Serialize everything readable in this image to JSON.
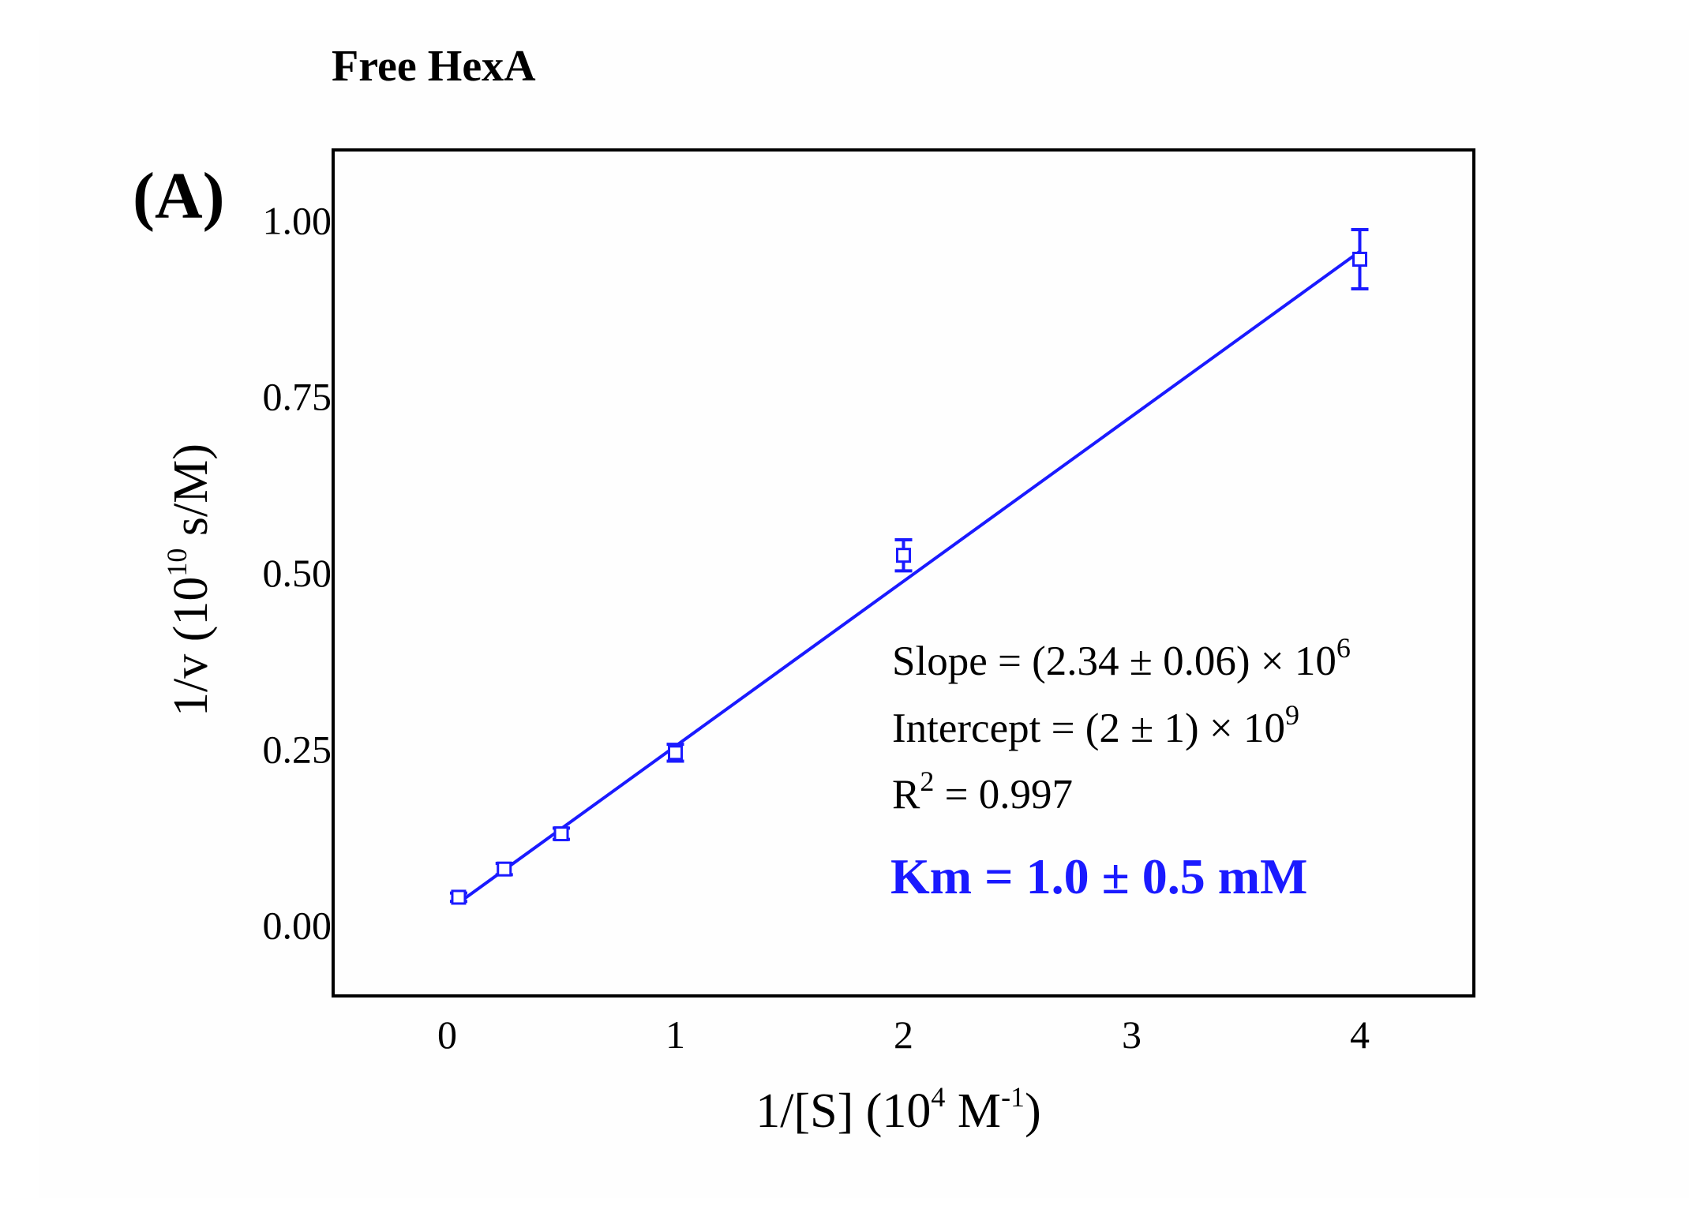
{
  "chart_data": {
    "type": "scatter",
    "title": "Free HexA",
    "panel_label": "(A)",
    "xlabel": {
      "main": "1/[S] (10",
      "exp1": "4",
      "mid": " M",
      "exp2": "-1",
      "end": ")"
    },
    "ylabel": {
      "main": "1/v (10",
      "exp": "10",
      "end": " s/M)"
    },
    "xlim": [
      -0.5,
      4.5
    ],
    "ylim": [
      -0.1,
      1.1
    ],
    "xticks": [
      0,
      1,
      2,
      3,
      4
    ],
    "xtick_labels": [
      "0",
      "1",
      "2",
      "3",
      "4"
    ],
    "yticks": [
      0.0,
      0.25,
      0.5,
      0.75,
      1.0
    ],
    "ytick_labels": [
      "0.00",
      "0.25",
      "0.50",
      "0.75",
      "1.00"
    ],
    "grid": false,
    "series": [
      {
        "marker": "open-square",
        "color": "#1a1aff",
        "x": [
          0.05,
          0.25,
          0.5,
          1.0,
          2.0,
          4.0
        ],
        "y": [
          0.04,
          0.08,
          0.13,
          0.245,
          0.525,
          0.945
        ],
        "err": [
          0.006,
          0.008,
          0.008,
          0.012,
          0.022,
          0.042
        ]
      }
    ],
    "fit_line": {
      "color": "#1a1aff",
      "x": [
        0.05,
        4.0
      ],
      "y": [
        0.032,
        0.956
      ]
    },
    "annotations": {
      "slope": {
        "main": "Slope = (2.34 ± 0.06) × 10",
        "exp": "6"
      },
      "intercept": {
        "main": "Intercept = (2 ± 1) × 10",
        "exp": "9"
      },
      "r2": {
        "pre": "R",
        "exp": "2",
        "post": " = 0.997"
      },
      "km": "Km = 1.0 ± 0.5 mM",
      "km_color": "#1a1aff"
    }
  }
}
